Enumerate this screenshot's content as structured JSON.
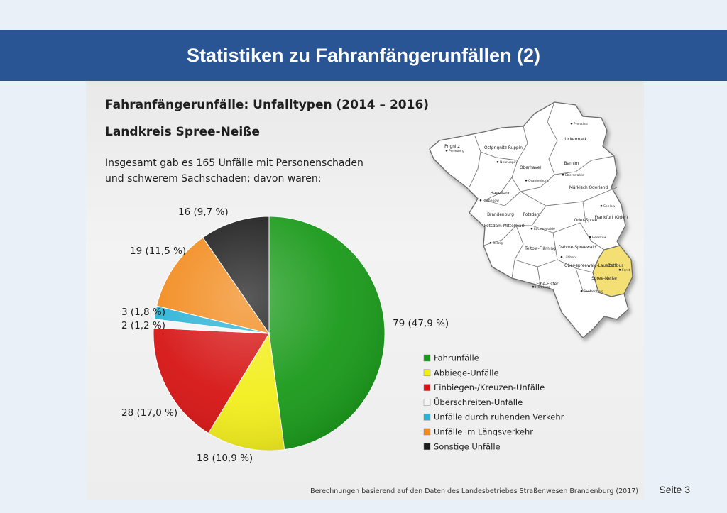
{
  "slide": {
    "title": "Statistiken zu Fahranfängerunfällen (2)",
    "page": "Seite 3",
    "source": "Berechnungen basierend auf den Daten des Landesbetriebes Straßenwesen Brandenburg (2017)"
  },
  "chart_data": {
    "type": "pie",
    "title": "Fahranfängerunfälle: Unfalltypen (2014 – 2016)",
    "subtitle": "Landkreis Spree-Neiße",
    "intro_lines": [
      "Insgesamt gab es 165 Unfälle mit Personenschaden",
      "und schwerem Sachschaden; davon waren:"
    ],
    "total": 165,
    "legend_position": "bottom-right",
    "slices": [
      {
        "name": "Fahrunfälle",
        "value": 79,
        "label": "79 (47,9 %)",
        "color": "#1a9a1a"
      },
      {
        "name": "Abbiege-Unfälle",
        "value": 18,
        "label": "18 (10,9 %)",
        "color": "#f2ee1c"
      },
      {
        "name": "Einbiegen-/Kreuzen-Unfälle",
        "value": 28,
        "label": "28 (17,0 %)",
        "color": "#d61414"
      },
      {
        "name": "Überschreiten-Unfälle",
        "value": 2,
        "label": "2 (1,2 %)",
        "color": "#f4f4f4"
      },
      {
        "name": "Unfälle durch ruhenden Verkehr",
        "value": 3,
        "label": "3 (1,8 %)",
        "color": "#2ab2d6"
      },
      {
        "name": "Unfälle im Längsverkehr",
        "value": 19,
        "label": "19 (11,5 %)",
        "color": "#f28a1c"
      },
      {
        "name": "Sonstige Unfälle",
        "value": 16,
        "label": "16 (9,7 %)",
        "color": "#1b1b1b"
      }
    ]
  },
  "map": {
    "highlight_color": "#f3df73",
    "regions": [
      {
        "name": "Prignitz",
        "towns": [
          "Perleberg"
        ]
      },
      {
        "name": "Ostprignitz-Ruppin",
        "towns": [
          "Neuruppin"
        ]
      },
      {
        "name": "Uckermark",
        "towns": [
          "Prenzlau"
        ]
      },
      {
        "name": "Oberhavel",
        "towns": [
          "Oranienburg"
        ]
      },
      {
        "name": "Barnim",
        "towns": [
          "Eberswalde"
        ]
      },
      {
        "name": "Märkisch Oderland",
        "towns": [
          "Seelow"
        ]
      },
      {
        "name": "Havelland",
        "towns": [
          "Rathenow"
        ]
      },
      {
        "name": "Brandenburg",
        "towns": []
      },
      {
        "name": "Potsdam",
        "towns": []
      },
      {
        "name": "Frankfurt (Oder)",
        "towns": []
      },
      {
        "name": "Potsdam-Mittelmark",
        "towns": [
          "Belzig"
        ]
      },
      {
        "name": "Oder-Spree",
        "towns": [
          "Beeskow"
        ]
      },
      {
        "name": "Teltow-Fläming",
        "towns": [
          "Luckenwalde"
        ]
      },
      {
        "name": "Dahme-Spreewald",
        "towns": [
          "Lübben"
        ]
      },
      {
        "name": "Ober-spreewald-Lausitz",
        "towns": [
          "Senftenberg"
        ]
      },
      {
        "name": "Cottbus",
        "towns": []
      },
      {
        "name": "Spree-Neiße",
        "towns": [
          "Forst"
        ]
      },
      {
        "name": "Elbe-Elster",
        "towns": [
          "Herzberg"
        ]
      }
    ]
  }
}
